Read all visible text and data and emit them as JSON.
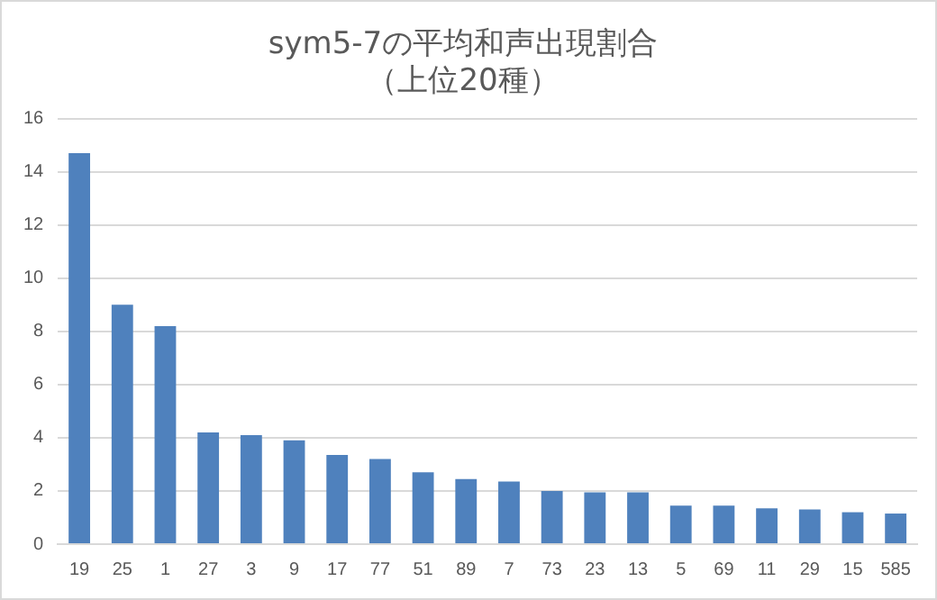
{
  "chart_data": {
    "type": "bar",
    "title": "sym5-7の平均和声出現割合（上位20種）",
    "categories": [
      "19",
      "25",
      "1",
      "27",
      "3",
      "9",
      "17",
      "77",
      "51",
      "89",
      "7",
      "73",
      "23",
      "13",
      "5",
      "69",
      "11",
      "29",
      "15",
      "585"
    ],
    "values": [
      14.7,
      9.0,
      8.2,
      4.2,
      4.1,
      3.9,
      3.35,
      3.2,
      2.7,
      2.45,
      2.35,
      2.0,
      1.95,
      1.95,
      1.45,
      1.45,
      1.35,
      1.3,
      1.2,
      1.15
    ],
    "color": "#4f81bd",
    "ylim": [
      0,
      16
    ],
    "yticks": [
      0,
      2,
      4,
      6,
      8,
      10,
      12,
      14,
      16
    ],
    "grid": "y",
    "legend": false
  }
}
